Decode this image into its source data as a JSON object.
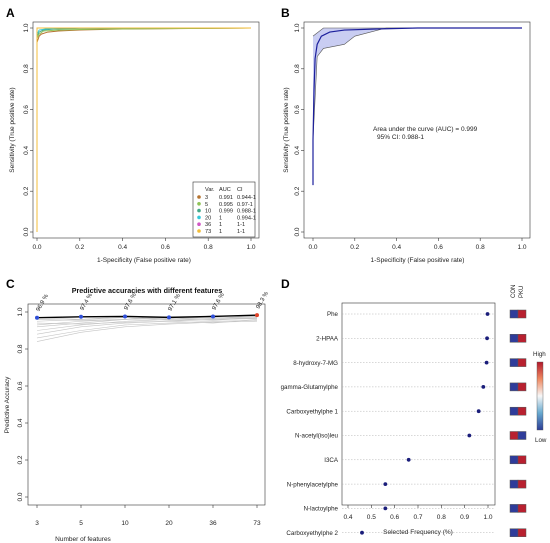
{
  "chart_data": [
    {
      "panel": "A",
      "type": "line",
      "xlabel": "1-Specificity (False positive rate)",
      "ylabel": "Sensitivity (True positive rate)",
      "xlim": [
        0,
        1
      ],
      "ylim": [
        0,
        1
      ],
      "ticks": [
        "0.0",
        "0.2",
        "0.4",
        "0.6",
        "0.8",
        "1.0"
      ],
      "legend": {
        "placement": "bottom-right",
        "headers": [
          "Var.",
          "AUC",
          "CI"
        ],
        "rows": [
          {
            "var": "3",
            "auc": "0.991",
            "ci": "0.944-1",
            "color": "#b5732f"
          },
          {
            "var": "5",
            "auc": "0.995",
            "ci": "0.97-1",
            "color": "#8fc356"
          },
          {
            "var": "10",
            "auc": "0.999",
            "ci": "0.988-1",
            "color": "#43a889"
          },
          {
            "var": "20",
            "auc": "1",
            "ci": "0.994-1",
            "color": "#34c8d8"
          },
          {
            "var": "36",
            "auc": "1",
            "ci": "1-1",
            "color": "#d257c4"
          },
          {
            "var": "73",
            "auc": "1",
            "ci": "1-1",
            "color": "#f3bd38"
          }
        ]
      },
      "series": [
        {
          "color": "#b5732f",
          "points": [
            [
              0,
              0
            ],
            [
              0,
              0.93
            ],
            [
              0.01,
              0.96
            ],
            [
              0.02,
              0.97
            ],
            [
              0.05,
              0.98
            ],
            [
              0.1,
              0.985
            ],
            [
              0.2,
              0.99
            ],
            [
              0.4,
              0.995
            ],
            [
              1,
              1
            ]
          ]
        },
        {
          "color": "#8fc356",
          "points": [
            [
              0,
              0
            ],
            [
              0,
              0.95
            ],
            [
              0.01,
              0.97
            ],
            [
              0.03,
              0.985
            ],
            [
              0.1,
              0.99
            ],
            [
              0.3,
              0.995
            ],
            [
              1,
              1
            ]
          ]
        },
        {
          "color": "#43a889",
          "points": [
            [
              0,
              0
            ],
            [
              0,
              0.96
            ],
            [
              0.01,
              0.98
            ],
            [
              0.03,
              0.99
            ],
            [
              0.08,
              0.995
            ],
            [
              0.2,
              0.998
            ],
            [
              1,
              1
            ]
          ]
        },
        {
          "color": "#34c8d8",
          "points": [
            [
              0,
              0
            ],
            [
              0,
              0.97
            ],
            [
              0.01,
              0.99
            ],
            [
              0.04,
              0.995
            ],
            [
              0.1,
              1
            ],
            [
              1,
              1
            ]
          ]
        },
        {
          "color": "#d257c4",
          "points": [
            [
              0,
              0
            ],
            [
              0,
              1
            ],
            [
              1,
              1
            ]
          ]
        },
        {
          "color": "#f3bd38",
          "points": [
            [
              0,
              0
            ],
            [
              0,
              0.9
            ],
            [
              0,
              1
            ],
            [
              1,
              1
            ]
          ]
        }
      ]
    },
    {
      "panel": "B",
      "type": "line",
      "xlabel": "1-Specificity (False positive rate)",
      "ylabel": "Sensitivity (True positive rate)",
      "xlim": [
        0,
        1
      ],
      "ylim": [
        0,
        1
      ],
      "ticks": [
        "0.0",
        "0.2",
        "0.4",
        "0.6",
        "0.8",
        "1.0"
      ],
      "annotation": [
        "Area under the curve (AUC) = 0.999",
        "95% CI: 0.988-1"
      ],
      "curve": [
        [
          0,
          0.23
        ],
        [
          0,
          0.45
        ],
        [
          0.005,
          0.7
        ],
        [
          0.01,
          0.85
        ],
        [
          0.02,
          0.92
        ],
        [
          0.04,
          0.96
        ],
        [
          0.08,
          0.98
        ],
        [
          0.15,
          0.99
        ],
        [
          0.3,
          0.995
        ],
        [
          0.5,
          1
        ],
        [
          1,
          1
        ]
      ],
      "ci_band_lower": [
        [
          0,
          0.45
        ],
        [
          0.02,
          0.86
        ],
        [
          0.05,
          0.9
        ],
        [
          0.15,
          0.92
        ],
        [
          0.2,
          0.96
        ],
        [
          0.35,
          1
        ],
        [
          1,
          1
        ]
      ],
      "ci_band_upper": [
        [
          0,
          0.96
        ],
        [
          0.05,
          1
        ],
        [
          1,
          1
        ]
      ]
    },
    {
      "panel": "C",
      "type": "line",
      "title": "Predictive accuracies with different features",
      "xlabel": "Number of features",
      "ylabel": "Predictive Accuracy",
      "categories": [
        "3",
        "5",
        "10",
        "20",
        "36",
        "73"
      ],
      "ylim": [
        0,
        1
      ],
      "yticks": [
        "0.0",
        "0.2",
        "0.4",
        "0.6",
        "0.8",
        "1.0"
      ],
      "series": [
        {
          "values": [
            0.969,
            0.974,
            0.976,
            0.971,
            0.976,
            0.983
          ]
        }
      ],
      "point_labels": [
        "96.9 %",
        "97.4 %",
        "97.6 %",
        "97.1 %",
        "97.6 %",
        "98.3 %"
      ],
      "point_colors": [
        "#2f4fd8",
        "#2f4fd8",
        "#2f4fd8",
        "#2f4fd8",
        "#2f4fd8",
        "#e0442a"
      ],
      "background_runs": [
        [
          0.93,
          0.95,
          0.96,
          0.97,
          0.965,
          0.975
        ],
        [
          0.95,
          0.96,
          0.97,
          0.955,
          0.96,
          0.97
        ],
        [
          0.9,
          0.93,
          0.95,
          0.96,
          0.97,
          0.965
        ],
        [
          0.96,
          0.955,
          0.96,
          0.975,
          0.965,
          0.98
        ],
        [
          0.86,
          0.9,
          0.93,
          0.94,
          0.95,
          0.955
        ],
        [
          0.88,
          0.92,
          0.94,
          0.95,
          0.94,
          0.96
        ],
        [
          0.97,
          0.96,
          0.975,
          0.96,
          0.98,
          0.975
        ],
        [
          0.92,
          0.94,
          0.96,
          0.965,
          0.955,
          0.97
        ],
        [
          0.84,
          0.89,
          0.92,
          0.935,
          0.945,
          0.95
        ],
        [
          0.94,
          0.935,
          0.945,
          0.95,
          0.96,
          0.965
        ]
      ]
    },
    {
      "panel": "D",
      "type": "scatter",
      "xlabel": "Selected Frequency (%)",
      "xlim": [
        0.4,
        1.0
      ],
      "xticks": [
        "0.4",
        "0.5",
        "0.6",
        "0.7",
        "0.8",
        "0.9",
        "1.0"
      ],
      "categories": [
        "Phe",
        "2-HPAA",
        "8-hydroxy-7-MG",
        "gamma-Glutamylphe",
        "Carboxyethylphe 1",
        "N-acetyl(iso)leu",
        "I3CA",
        "N-phenylacetylphe",
        "N-lactoylphe",
        "Carboxyethylphe 2"
      ],
      "values": [
        0.998,
        0.996,
        0.994,
        0.98,
        0.96,
        0.92,
        0.66,
        0.56,
        0.56,
        0.46
      ],
      "groups": [
        "CON",
        "PKU"
      ],
      "heat": [
        [
          "#2f3c9a",
          "#b8202f"
        ],
        [
          "#2f3c9a",
          "#b8202f"
        ],
        [
          "#2f3c9a",
          "#b8202f"
        ],
        [
          "#2f3c9a",
          "#b8202f"
        ],
        [
          "#2f3c9a",
          "#b8202f"
        ],
        [
          "#b8202f",
          "#2f3c9a"
        ],
        [
          "#2f3c9a",
          "#b8202f"
        ],
        [
          "#2f3c9a",
          "#b8202f"
        ],
        [
          "#2f3c9a",
          "#b8202f"
        ],
        [
          "#2f3c9a",
          "#b8202f"
        ]
      ],
      "colorbar": {
        "high": "High",
        "low": "Low"
      }
    }
  ],
  "panels": {
    "a": "A",
    "b": "B",
    "c": "C",
    "d": "D"
  }
}
